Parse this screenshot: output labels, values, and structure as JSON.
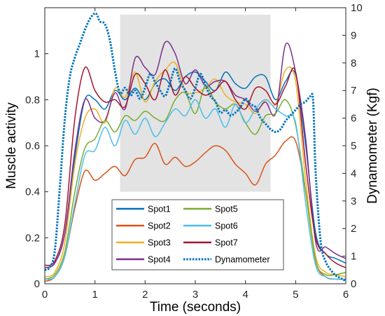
{
  "chart_data": {
    "type": "line",
    "xlabel": "Time (seconds)",
    "ylabel_left": "Muscle activity",
    "ylabel_right": "Dynamometer (Kgf)",
    "xlim": [
      0,
      6
    ],
    "ylim_left": [
      0,
      1.2
    ],
    "ylim_right": [
      0,
      10
    ],
    "x_ticks": [
      "0",
      "1",
      "2",
      "3",
      "4",
      "5",
      "6"
    ],
    "y_left_ticks": [
      "0",
      "0.2",
      "0.4",
      "0.6",
      "0.8",
      "1"
    ],
    "y_right_ticks": [
      "0",
      "1",
      "2",
      "3",
      "4",
      "5",
      "6",
      "7",
      "8",
      "9",
      "10"
    ],
    "shaded_region": {
      "x": [
        1.5,
        4.5
      ],
      "y_left": [
        0.4,
        1.17
      ]
    },
    "grid": false,
    "legend_location": "bottom-center",
    "legend_columns": 2,
    "series": [
      {
        "name": "Spot1",
        "axis": "left",
        "color": "#0072BD",
        "style": "solid",
        "x": [
          0,
          0.2,
          0.4,
          0.6,
          0.8,
          1.0,
          1.2,
          1.4,
          1.6,
          1.8,
          2.0,
          2.2,
          2.4,
          2.6,
          2.8,
          3.0,
          3.2,
          3.4,
          3.6,
          3.8,
          4.0,
          4.2,
          4.4,
          4.6,
          4.8,
          5.0,
          5.2,
          5.4,
          5.6,
          5.8,
          6.0
        ],
        "y": [
          0.07,
          0.09,
          0.22,
          0.55,
          0.8,
          0.8,
          0.76,
          0.84,
          0.8,
          0.85,
          0.8,
          0.87,
          0.89,
          0.84,
          0.9,
          0.92,
          0.88,
          0.84,
          0.92,
          0.87,
          0.85,
          0.9,
          0.9,
          0.8,
          0.88,
          0.91,
          0.6,
          0.22,
          0.13,
          0.11,
          0.09
        ]
      },
      {
        "name": "Spot2",
        "axis": "left",
        "color": "#D95319",
        "style": "solid",
        "x": [
          0,
          0.2,
          0.4,
          0.6,
          0.8,
          1.0,
          1.2,
          1.4,
          1.6,
          1.8,
          2.0,
          2.2,
          2.4,
          2.6,
          2.8,
          3.0,
          3.2,
          3.4,
          3.6,
          3.8,
          4.0,
          4.2,
          4.4,
          4.6,
          4.8,
          5.0,
          5.2,
          5.4,
          5.6,
          5.8,
          6.0
        ],
        "y": [
          0.01,
          0.03,
          0.12,
          0.33,
          0.49,
          0.45,
          0.48,
          0.51,
          0.47,
          0.54,
          0.55,
          0.61,
          0.52,
          0.55,
          0.51,
          0.53,
          0.57,
          0.6,
          0.58,
          0.52,
          0.48,
          0.43,
          0.52,
          0.56,
          0.62,
          0.62,
          0.4,
          0.1,
          0.03,
          0.02,
          0.02
        ]
      },
      {
        "name": "Spot3",
        "axis": "left",
        "color": "#EDB120",
        "style": "solid",
        "x": [
          0,
          0.2,
          0.4,
          0.6,
          0.8,
          1.0,
          1.2,
          1.4,
          1.6,
          1.8,
          2.0,
          2.2,
          2.4,
          2.6,
          2.8,
          3.0,
          3.2,
          3.4,
          3.6,
          3.8,
          4.0,
          4.2,
          4.4,
          4.6,
          4.8,
          5.0,
          5.2,
          5.4,
          5.6,
          5.8,
          6.0
        ],
        "y": [
          0.03,
          0.05,
          0.18,
          0.52,
          0.72,
          0.76,
          0.7,
          0.85,
          0.81,
          0.92,
          0.79,
          0.88,
          0.93,
          0.96,
          0.84,
          0.83,
          0.85,
          0.89,
          0.82,
          0.79,
          0.78,
          0.74,
          0.8,
          0.78,
          0.93,
          0.88,
          0.45,
          0.12,
          0.05,
          0.04,
          0.03
        ]
      },
      {
        "name": "Spot4",
        "axis": "left",
        "color": "#7E2F8E",
        "style": "solid",
        "x": [
          0,
          0.2,
          0.4,
          0.6,
          0.8,
          1.0,
          1.2,
          1.4,
          1.6,
          1.8,
          2.0,
          2.2,
          2.4,
          2.6,
          2.8,
          3.0,
          3.2,
          3.4,
          3.6,
          3.8,
          4.0,
          4.2,
          4.4,
          4.6,
          4.8,
          5.0,
          5.2,
          5.4,
          5.6,
          5.8,
          6.0
        ],
        "y": [
          0.07,
          0.09,
          0.22,
          0.58,
          0.8,
          0.72,
          0.71,
          0.83,
          0.76,
          0.98,
          0.94,
          0.91,
          1.05,
          1.0,
          0.87,
          0.93,
          0.86,
          0.88,
          0.88,
          0.82,
          0.8,
          0.75,
          0.79,
          0.74,
          1.04,
          0.92,
          0.63,
          0.18,
          0.16,
          0.13,
          0.11
        ]
      },
      {
        "name": "Spot5",
        "axis": "left",
        "color": "#77AC30",
        "style": "solid",
        "x": [
          0,
          0.2,
          0.4,
          0.6,
          0.8,
          1.0,
          1.2,
          1.4,
          1.6,
          1.8,
          2.0,
          2.2,
          2.4,
          2.6,
          2.8,
          3.0,
          3.2,
          3.4,
          3.6,
          3.8,
          4.0,
          4.2,
          4.4,
          4.6,
          4.8,
          5.0,
          5.2,
          5.4,
          5.6,
          5.8,
          6.0
        ],
        "y": [
          0.02,
          0.04,
          0.14,
          0.4,
          0.59,
          0.63,
          0.71,
          0.66,
          0.73,
          0.71,
          0.75,
          0.72,
          0.71,
          0.8,
          0.83,
          0.74,
          0.86,
          0.79,
          0.76,
          0.78,
          0.7,
          0.65,
          0.73,
          0.74,
          0.8,
          0.69,
          0.4,
          0.1,
          0.04,
          0.04,
          0.05
        ]
      },
      {
        "name": "Spot6",
        "axis": "left",
        "color": "#4DBEEE",
        "style": "solid",
        "x": [
          0,
          0.2,
          0.4,
          0.6,
          0.8,
          1.0,
          1.2,
          1.4,
          1.6,
          1.8,
          2.0,
          2.2,
          2.4,
          2.6,
          2.8,
          3.0,
          3.2,
          3.4,
          3.6,
          3.8,
          4.0,
          4.2,
          4.4,
          4.6,
          4.8,
          5.0,
          5.2,
          5.4,
          5.6,
          5.8,
          6.0
        ],
        "y": [
          0.02,
          0.03,
          0.12,
          0.35,
          0.56,
          0.58,
          0.68,
          0.6,
          0.71,
          0.65,
          0.72,
          0.64,
          0.7,
          0.76,
          0.73,
          0.8,
          0.72,
          0.76,
          0.68,
          0.78,
          0.7,
          0.76,
          0.8,
          0.76,
          0.73,
          0.7,
          0.35,
          0.08,
          0.03,
          0.02,
          0.02
        ]
      },
      {
        "name": "Spot7",
        "axis": "left",
        "color": "#A2142F",
        "style": "solid",
        "x": [
          0,
          0.2,
          0.4,
          0.6,
          0.8,
          1.0,
          1.2,
          1.4,
          1.6,
          1.8,
          2.0,
          2.2,
          2.4,
          2.6,
          2.8,
          3.0,
          3.2,
          3.4,
          3.6,
          3.8,
          4.0,
          4.2,
          4.4,
          4.6,
          4.8,
          5.0,
          5.2,
          5.4,
          5.6,
          5.8,
          6.0
        ],
        "y": [
          0.08,
          0.1,
          0.26,
          0.72,
          0.94,
          0.84,
          0.79,
          0.8,
          0.77,
          0.91,
          0.87,
          0.8,
          0.93,
          0.82,
          0.9,
          0.85,
          0.82,
          0.84,
          0.88,
          0.8,
          0.76,
          0.85,
          0.84,
          0.78,
          0.86,
          0.92,
          0.52,
          0.2,
          0.13,
          0.09,
          0.07
        ]
      },
      {
        "name": "Dynamometer",
        "axis": "right",
        "color": "#0072BD",
        "style": "dotted",
        "x": [
          0,
          0.1,
          0.2,
          0.3,
          0.4,
          0.5,
          0.6,
          0.7,
          0.8,
          0.9,
          1.0,
          1.05,
          1.1,
          1.2,
          1.3,
          1.4,
          1.5,
          1.6,
          1.7,
          1.8,
          1.9,
          2.0,
          2.1,
          2.2,
          2.3,
          2.4,
          2.5,
          2.6,
          2.7,
          2.8,
          2.9,
          3.0,
          3.1,
          3.2,
          3.3,
          3.4,
          3.5,
          3.6,
          3.7,
          3.8,
          3.9,
          4.0,
          4.1,
          4.2,
          4.3,
          4.4,
          4.5,
          4.6,
          4.7,
          4.8,
          4.9,
          5.0,
          5.1,
          5.2,
          5.3,
          5.35,
          5.4,
          5.5,
          5.6,
          5.7,
          5.8,
          5.9,
          6.0
        ],
        "y": [
          0.5,
          0.6,
          1.2,
          3.5,
          6.0,
          7.5,
          8.2,
          8.7,
          9.2,
          9.6,
          9.8,
          9.7,
          9.5,
          9.4,
          8.8,
          7.7,
          6.9,
          7.1,
          6.8,
          7.0,
          6.7,
          7.1,
          7.6,
          7.3,
          7.0,
          6.8,
          7.3,
          7.8,
          7.3,
          7.0,
          6.7,
          7.1,
          7.6,
          7.2,
          6.8,
          6.6,
          6.2,
          6.3,
          6.1,
          6.2,
          6.4,
          6.7,
          6.5,
          6.4,
          6.0,
          5.8,
          5.6,
          5.5,
          5.6,
          5.9,
          6.1,
          6.3,
          6.5,
          6.6,
          6.8,
          6.6,
          4.0,
          1.5,
          0.8,
          0.5,
          0.3,
          0.2,
          0.1
        ]
      }
    ]
  }
}
